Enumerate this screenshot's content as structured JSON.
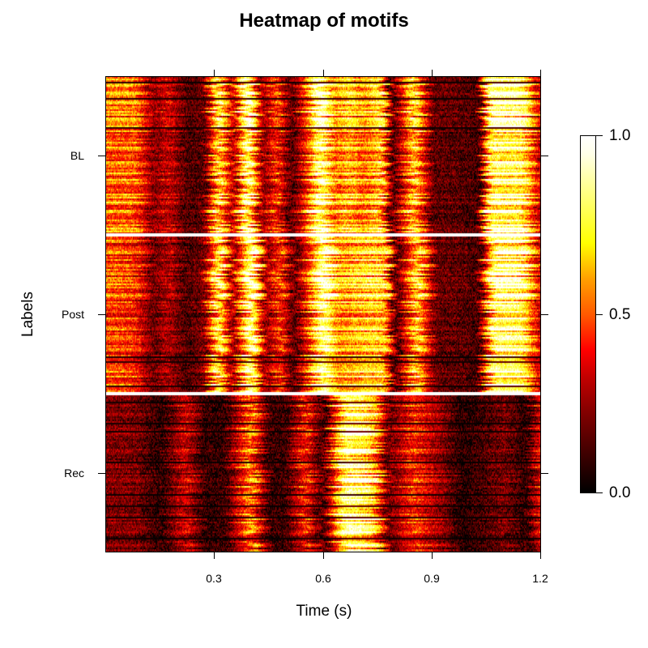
{
  "chart_data": {
    "type": "heatmap",
    "title": "Heatmap of motifs",
    "xlabel": "Time (s)",
    "ylabel": "Labels",
    "xlim": [
      0,
      1.2
    ],
    "x_ticks": [
      "0.3",
      "0.6",
      "0.9",
      "1.2"
    ],
    "y_ticks": [
      "BL",
      "Post",
      "Rec"
    ],
    "groups": [
      {
        "name": "BL",
        "row_order": "top",
        "profile": [
          {
            "t": 0.0,
            "v": 0.55
          },
          {
            "t": 0.08,
            "v": 0.55
          },
          {
            "t": 0.13,
            "v": 0.2
          },
          {
            "t": 0.17,
            "v": 0.35
          },
          {
            "t": 0.22,
            "v": 0.12
          },
          {
            "t": 0.27,
            "v": 0.15
          },
          {
            "t": 0.31,
            "v": 0.8
          },
          {
            "t": 0.35,
            "v": 0.25
          },
          {
            "t": 0.39,
            "v": 1.0
          },
          {
            "t": 0.43,
            "v": 0.2
          },
          {
            "t": 0.47,
            "v": 0.5
          },
          {
            "t": 0.51,
            "v": 0.1
          },
          {
            "t": 0.55,
            "v": 0.45
          },
          {
            "t": 0.59,
            "v": 1.0
          },
          {
            "t": 0.63,
            "v": 0.55
          },
          {
            "t": 0.67,
            "v": 0.7
          },
          {
            "t": 0.71,
            "v": 0.55
          },
          {
            "t": 0.76,
            "v": 0.75
          },
          {
            "t": 0.79,
            "v": 0.08
          },
          {
            "t": 0.85,
            "v": 0.75
          },
          {
            "t": 0.9,
            "v": 0.15
          },
          {
            "t": 0.97,
            "v": 0.15
          },
          {
            "t": 1.03,
            "v": 0.1
          },
          {
            "t": 1.06,
            "v": 0.9
          },
          {
            "t": 1.15,
            "v": 0.85
          },
          {
            "t": 1.2,
            "v": 0.3
          }
        ]
      },
      {
        "name": "Post",
        "row_order": "middle",
        "profile": [
          {
            "t": 0.0,
            "v": 0.5
          },
          {
            "t": 0.08,
            "v": 0.45
          },
          {
            "t": 0.13,
            "v": 0.15
          },
          {
            "t": 0.17,
            "v": 0.3
          },
          {
            "t": 0.22,
            "v": 0.1
          },
          {
            "t": 0.27,
            "v": 0.2
          },
          {
            "t": 0.31,
            "v": 0.85
          },
          {
            "t": 0.35,
            "v": 0.2
          },
          {
            "t": 0.4,
            "v": 1.0
          },
          {
            "t": 0.44,
            "v": 0.2
          },
          {
            "t": 0.48,
            "v": 0.5
          },
          {
            "t": 0.52,
            "v": 0.1
          },
          {
            "t": 0.56,
            "v": 0.5
          },
          {
            "t": 0.6,
            "v": 1.0
          },
          {
            "t": 0.64,
            "v": 0.6
          },
          {
            "t": 0.68,
            "v": 0.65
          },
          {
            "t": 0.72,
            "v": 0.7
          },
          {
            "t": 0.77,
            "v": 0.7
          },
          {
            "t": 0.8,
            "v": 0.08
          },
          {
            "t": 0.86,
            "v": 0.75
          },
          {
            "t": 0.91,
            "v": 0.15
          },
          {
            "t": 0.98,
            "v": 0.15
          },
          {
            "t": 1.03,
            "v": 0.1
          },
          {
            "t": 1.07,
            "v": 0.9
          },
          {
            "t": 1.15,
            "v": 0.85
          },
          {
            "t": 1.2,
            "v": 0.3
          }
        ]
      },
      {
        "name": "Rec",
        "row_order": "bottom",
        "profile": [
          {
            "t": 0.0,
            "v": 0.2
          },
          {
            "t": 0.08,
            "v": 0.2
          },
          {
            "t": 0.15,
            "v": 0.05
          },
          {
            "t": 0.22,
            "v": 0.35
          },
          {
            "t": 0.27,
            "v": 0.08
          },
          {
            "t": 0.33,
            "v": 0.08
          },
          {
            "t": 0.4,
            "v": 0.6
          },
          {
            "t": 0.45,
            "v": 0.08
          },
          {
            "t": 0.5,
            "v": 0.1
          },
          {
            "t": 0.55,
            "v": 0.45
          },
          {
            "t": 0.6,
            "v": 0.08
          },
          {
            "t": 0.66,
            "v": 0.9
          },
          {
            "t": 0.7,
            "v": 0.85
          },
          {
            "t": 0.74,
            "v": 0.7
          },
          {
            "t": 0.78,
            "v": 0.15
          },
          {
            "t": 0.85,
            "v": 0.45
          },
          {
            "t": 0.92,
            "v": 0.25
          },
          {
            "t": 0.98,
            "v": 0.05
          },
          {
            "t": 1.04,
            "v": 0.1
          },
          {
            "t": 1.1,
            "v": 0.2
          },
          {
            "t": 1.16,
            "v": 0.05
          },
          {
            "t": 1.2,
            "v": 0.4
          }
        ]
      }
    ],
    "colorbar": {
      "range": [
        0.0,
        1.0
      ],
      "ticks": [
        "0.0",
        "0.5",
        "1.0"
      ],
      "colormap": "heat (black-red-orange-yellow-white)",
      "colors": [
        "#000000",
        "#800000",
        "#ff0000",
        "#ff8000",
        "#ffff00",
        "#ffffff"
      ]
    },
    "separators": "white horizontal lines between groups",
    "grid": false,
    "legend_position": "right colorbar"
  }
}
